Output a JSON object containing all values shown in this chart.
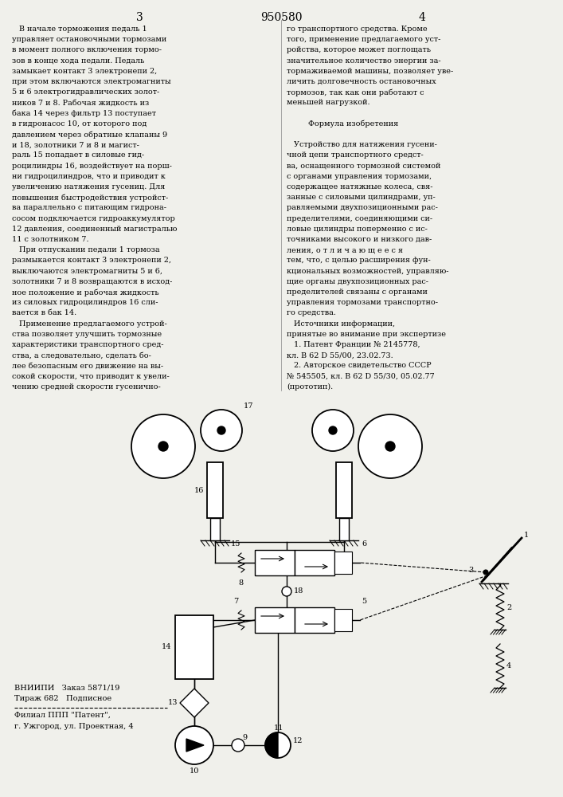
{
  "page_width": 7.07,
  "page_height": 10.0,
  "bg_color": "#f0f0eb",
  "header_number": "950580",
  "page_left": "3",
  "page_right": "4",
  "left_column_text": [
    "   В начале торможения педаль 1",
    "управляет остановочными тормозами",
    "в момент полного включения тормо-",
    "зов в конце хода педали. Педаль",
    "замыкает контакт 3 электронепи 2,",
    "при этом включаются электромагниты",
    "5 и 6 электрогидравлических золот-",
    "ников 7 и 8. Рабочая жидкость из",
    "бака 14 через фильтр 13 поступает",
    "в гидронасос 10, от которого под",
    "давлением через обратные клапаны 9",
    "и 18, золотники 7 и 8 и магист-",
    "раль 15 попадает в силовые гид-",
    "роцилиндры 16, воздействует на порш-",
    "ни гидроцилиндров, что и приводит к",
    "увеличению натяжения гусениц. Для",
    "повышения быстродействия устройст-",
    "ва параллельно с питающим гидрона-",
    "сосом подключается гидроаккумулятор",
    "12 давления, соединенный магистралью",
    "11 с золотником 7.",
    "   При отпускании педали 1 тормоза",
    "размыкается контакт 3 электронепи 2,",
    "выключаются электромагниты 5 и 6,",
    "золотники 7 и 8 возвращаются в исход-",
    "ное положение и рабочая жидкость",
    "из силовых гидроцилиндров 16 сли-",
    "вается в бак 14.",
    "   Применение предлагаемого устрой-",
    "ства позволяет улучшить тормозные",
    "характеристики транспортного сред-",
    "ства, а следовательно, сделать бо-",
    "лее безопасным его движение на вы-",
    "сокой скорости, что приводит к увели-",
    "чению средней скорости гусенично-"
  ],
  "right_column_text": [
    "го транспортного средства. Кроме",
    "того, применение предлагаемого уст-",
    "ройства, которое может поглощать",
    "значительное количество энергии за-",
    "тормаживаемой машины, позволяет уве-",
    "личить долговечность остановочных",
    "тормозов, так как они работают с",
    "меньшей нагрузкой.",
    "",
    "         Формула изобретения",
    "",
    "   Устройство для натяжения гусени-",
    "чной цепи транспортного средст-",
    "ва, оснащенного тормозной системой",
    "с органами управления тормозами,",
    "содержащее натяжные колеса, свя-",
    "занные с силовыми цилиндрами, уп-",
    "равляемыми двухпозиционными рас-",
    "пределителями, соединяющими си-",
    "ловые цилиндры поперменно с ис-",
    "точниками высокого и низкого дав-",
    "ления, о т л и ч а ю щ е е с я",
    "тем, что, с целью расширения фун-",
    "кциональных возможностей, управляю-",
    "щие органы двухпозиционных рас-",
    "пределителей связаны с органами",
    "управления тормозами транспортно-",
    "го средства.",
    "   Источники информации,",
    "принятые во внимание при экспертизе",
    "   1. Патент Франции № 2145778,",
    "кл. В 62 D 55/00, 23.02.73.",
    "   2. Авторское свидетельство СССР",
    "№ 545505, кл. В 62 D 55/30, 05.02.77",
    "(прототип)."
  ],
  "bottom_left_text": [
    "ВНИИПИ   Заказ 5871/19",
    "Тираж 682   Подписное",
    "Филиал ППП \"Патент\",",
    "г. Ужгород, ул. Проектная, 4"
  ]
}
